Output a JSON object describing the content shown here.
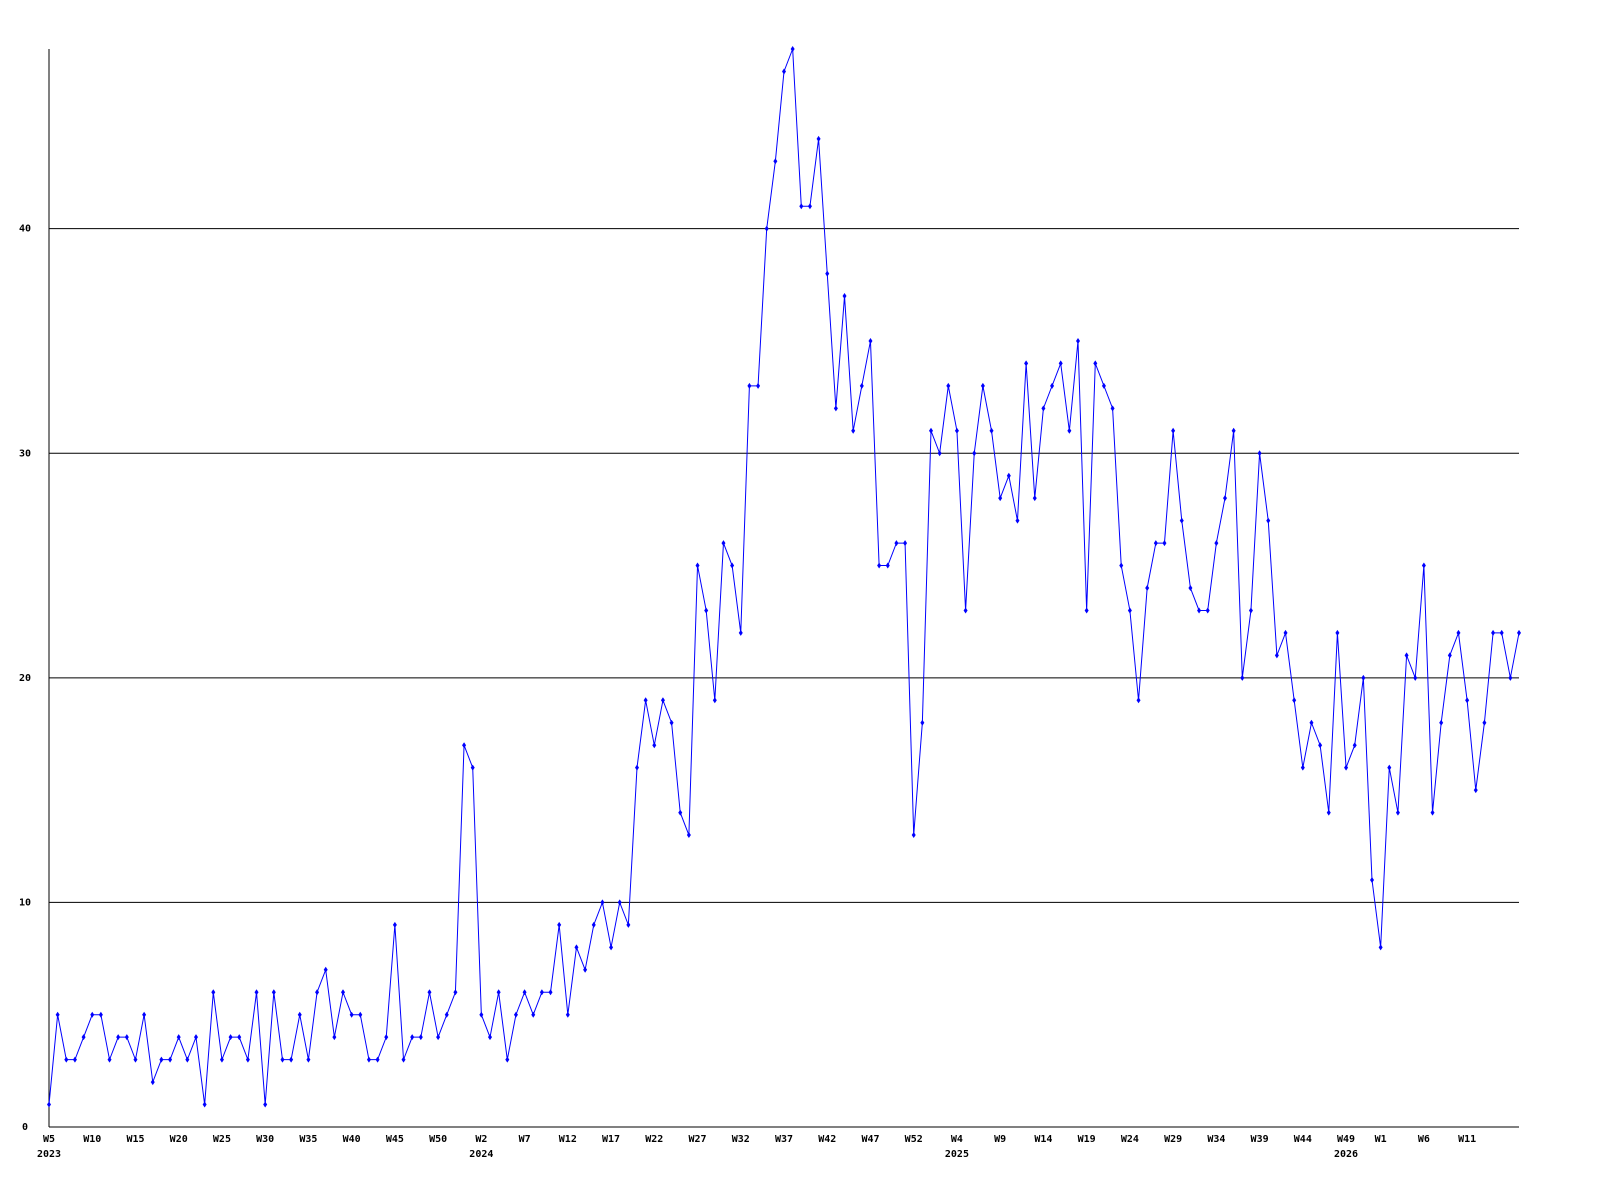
{
  "chart_data": {
    "type": "line",
    "ylim": [
      0,
      48
    ],
    "yticks": [
      0,
      10,
      20,
      30,
      40
    ],
    "grid": true,
    "categories": [
      "W5",
      null,
      null,
      null,
      null,
      "W10",
      null,
      null,
      null,
      null,
      "W15",
      null,
      null,
      null,
      null,
      "W20",
      null,
      null,
      null,
      null,
      "W25",
      null,
      null,
      null,
      null,
      "W30",
      null,
      null,
      null,
      null,
      "W35",
      null,
      null,
      null,
      null,
      "W40",
      null,
      null,
      null,
      null,
      "W45",
      null,
      null,
      null,
      null,
      "W50",
      null,
      null,
      null,
      null,
      "W2",
      null,
      null,
      null,
      null,
      "W7",
      null,
      null,
      null,
      null,
      "W12",
      null,
      null,
      null,
      null,
      "W17",
      null,
      null,
      null,
      null,
      "W22",
      null,
      null,
      null,
      null,
      "W27",
      null,
      null,
      null,
      null,
      "W32",
      null,
      null,
      null,
      null,
      "W37",
      null,
      null,
      null,
      null,
      "W42",
      null,
      null,
      null,
      null,
      "W47",
      null,
      null,
      null,
      null,
      "W52",
      null,
      null,
      null,
      null,
      "W4",
      null,
      null,
      null,
      null,
      "W9",
      null,
      null,
      null,
      null,
      "W14",
      null,
      null,
      null,
      null,
      "W19",
      null,
      null,
      null,
      null,
      "W24",
      null,
      null,
      null,
      null,
      "W29",
      null,
      null,
      null,
      null,
      "W34",
      null,
      null,
      null,
      null,
      "W39",
      null,
      null,
      null,
      null,
      "W44",
      null,
      null,
      null,
      null,
      "W49",
      null,
      null,
      null,
      "W1",
      null,
      null,
      null,
      null,
      "W6",
      null,
      null,
      null,
      null,
      "W11",
      null,
      null,
      null,
      null,
      null,
      null
    ],
    "years": [
      "2023",
      null,
      null,
      null,
      null,
      null,
      null,
      null,
      null,
      null,
      null,
      null,
      null,
      null,
      null,
      null,
      null,
      null,
      null,
      null,
      null,
      null,
      null,
      null,
      null,
      null,
      null,
      null,
      null,
      null,
      null,
      null,
      null,
      null,
      null,
      null,
      null,
      null,
      null,
      null,
      null,
      null,
      null,
      null,
      null,
      null,
      null,
      null,
      null,
      null,
      "2024",
      null,
      null,
      null,
      null,
      null,
      null,
      null,
      null,
      null,
      null,
      null,
      null,
      null,
      null,
      null,
      null,
      null,
      null,
      null,
      null,
      null,
      null,
      null,
      null,
      null,
      null,
      null,
      null,
      null,
      null,
      null,
      null,
      null,
      null,
      null,
      null,
      null,
      null,
      null,
      null,
      null,
      null,
      null,
      null,
      null,
      null,
      null,
      null,
      null,
      null,
      null,
      null,
      null,
      null,
      "2025",
      null,
      null,
      null,
      null,
      null,
      null,
      null,
      null,
      null,
      null,
      null,
      null,
      null,
      null,
      null,
      null,
      null,
      null,
      null,
      null,
      null,
      null,
      null,
      null,
      null,
      null,
      null,
      null,
      null,
      null,
      null,
      null,
      null,
      null,
      null,
      null,
      null,
      null,
      null,
      null,
      null,
      null,
      null,
      null,
      "2026",
      null,
      null,
      null,
      null,
      null,
      null,
      null,
      null,
      null,
      null,
      null,
      null,
      null,
      null,
      null,
      null
    ],
    "series": [
      {
        "color": "#0000ff",
        "values": [
          1,
          5,
          3,
          3,
          4,
          5,
          5,
          3,
          4,
          4,
          3,
          5,
          2,
          3,
          3,
          4,
          3,
          4,
          1,
          6,
          3,
          4,
          4,
          3,
          6,
          1,
          6,
          3,
          3,
          5,
          3,
          6,
          7,
          4,
          6,
          5,
          5,
          3,
          3,
          4,
          9,
          3,
          4,
          4,
          6,
          4,
          5,
          6,
          17,
          16,
          5,
          4,
          6,
          3,
          5,
          6,
          5,
          6,
          6,
          9,
          5,
          8,
          7,
          9,
          10,
          8,
          10,
          9,
          16,
          19,
          17,
          19,
          18,
          14,
          13,
          25,
          23,
          19,
          26,
          25,
          22,
          33,
          33,
          40,
          43,
          47,
          48,
          41,
          41,
          44,
          38,
          32,
          37,
          31,
          33,
          35,
          25,
          25,
          26,
          26,
          13,
          18,
          31,
          30,
          33,
          31,
          23,
          30,
          33,
          31,
          28,
          29,
          27,
          34,
          28,
          32,
          33,
          34,
          31,
          35,
          23,
          34,
          33,
          32,
          25,
          23,
          19,
          24,
          26,
          26,
          31,
          27,
          24,
          23,
          23,
          26,
          28,
          31,
          20,
          23,
          30,
          27,
          21,
          22,
          19,
          16,
          18,
          17,
          14,
          22,
          16,
          17,
          20,
          11,
          8,
          16,
          14,
          21,
          20,
          25,
          14,
          18,
          21,
          22,
          19,
          15,
          18,
          22,
          22,
          20,
          22
        ]
      }
    ]
  }
}
